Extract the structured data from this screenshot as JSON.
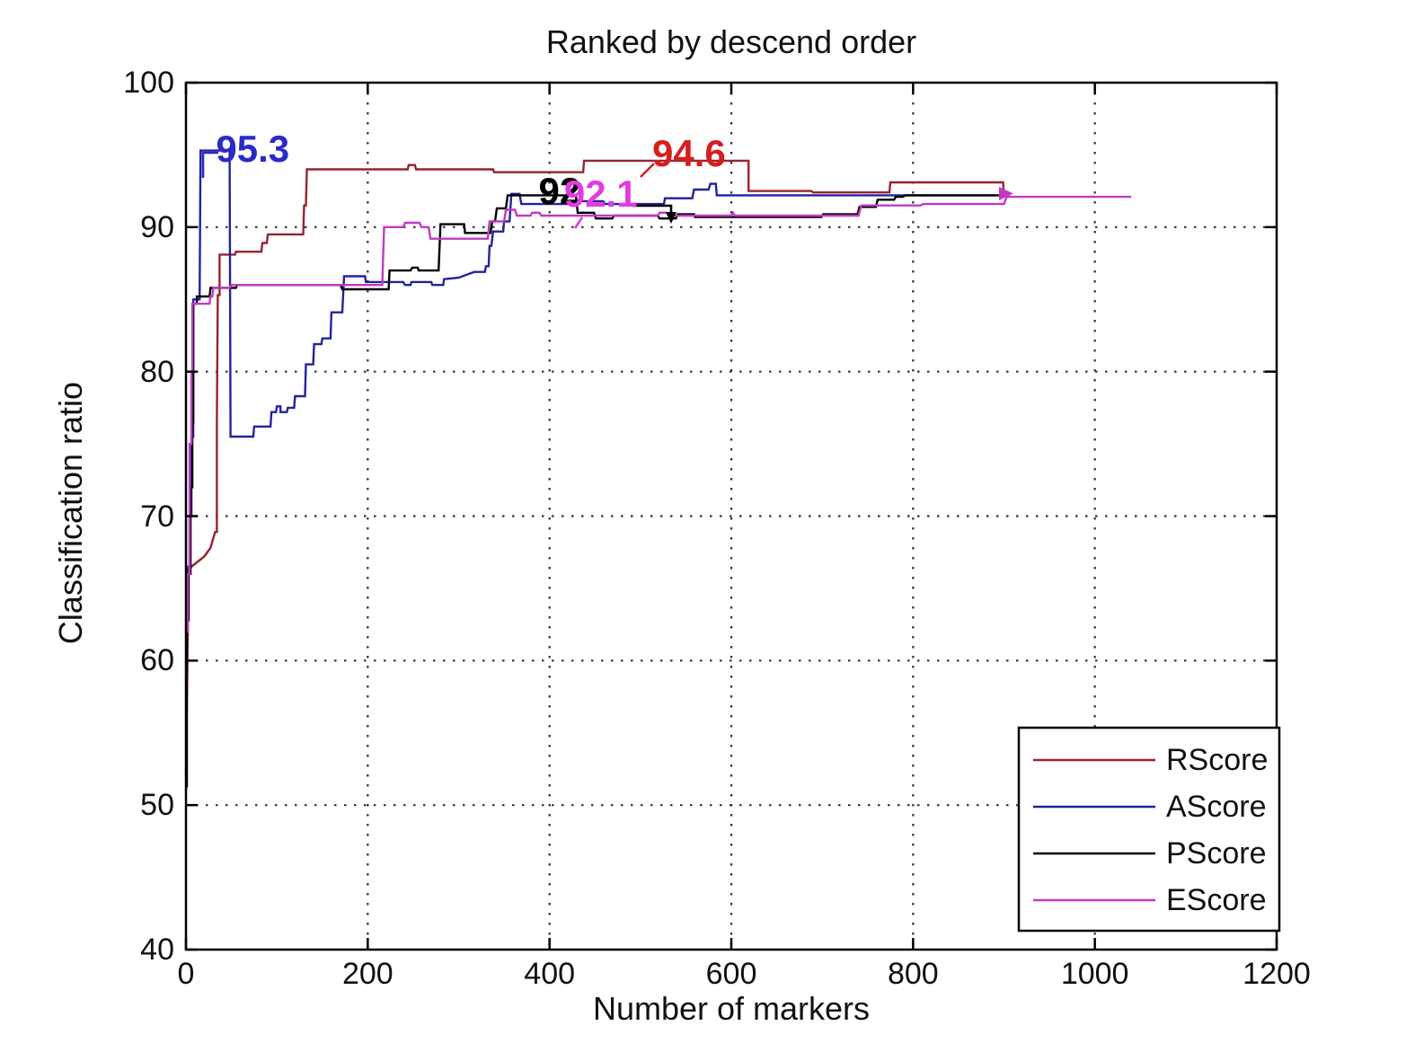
{
  "chart_data": {
    "type": "line",
    "title": "Ranked by descend order",
    "xlabel": "Number of markers",
    "ylabel": "Classification ratio",
    "xlim": [
      0,
      1200
    ],
    "ylim": [
      40,
      100
    ],
    "x_ticks": [
      0,
      200,
      400,
      600,
      800,
      1000,
      1200
    ],
    "y_ticks": [
      100,
      90,
      80,
      70,
      60,
      50,
      40
    ],
    "grid": "dotted",
    "grid_color": "#333333",
    "axis_color": "#000000",
    "legend_position": "lower right",
    "series": [
      {
        "name": "RScore",
        "color": "#96232f",
        "points": [
          [
            0,
            52
          ],
          [
            2,
            62
          ],
          [
            2,
            66.3
          ],
          [
            12,
            66.8
          ],
          [
            20,
            67.2
          ],
          [
            27,
            67.8
          ],
          [
            32,
            68.9
          ],
          [
            34,
            68.9
          ],
          [
            34,
            76.6
          ],
          [
            35,
            85.3
          ],
          [
            37,
            85.3
          ],
          [
            37,
            88.1
          ],
          [
            54,
            88.1
          ],
          [
            55,
            88.3
          ],
          [
            83,
            88.3
          ],
          [
            84,
            88.9
          ],
          [
            89,
            88.9
          ],
          [
            90,
            89.5
          ],
          [
            129,
            89.5
          ],
          [
            130,
            91.5
          ],
          [
            132,
            91.5
          ],
          [
            133,
            94.0
          ],
          [
            244,
            94.0
          ],
          [
            245,
            94.3
          ],
          [
            252,
            94.3
          ],
          [
            253,
            94.0
          ],
          [
            338,
            94.0
          ],
          [
            339,
            93.8
          ],
          [
            437,
            93.8
          ],
          [
            438,
            94.6
          ],
          [
            619,
            94.6
          ],
          [
            619,
            92.5
          ],
          [
            688,
            92.5
          ],
          [
            690,
            92.4
          ],
          [
            774,
            92.4
          ],
          [
            775,
            93.1
          ],
          [
            899,
            93.1
          ],
          [
            900,
            92.2
          ],
          [
            906,
            92.2
          ]
        ]
      },
      {
        "name": "AScore",
        "color": "#23239b",
        "points": [
          [
            1,
            62
          ],
          [
            2,
            62
          ],
          [
            2,
            66.5
          ],
          [
            4,
            66.5
          ],
          [
            4,
            70
          ],
          [
            6,
            70
          ],
          [
            6,
            75.5
          ],
          [
            8,
            75.5
          ],
          [
            8,
            85
          ],
          [
            15,
            85
          ],
          [
            16,
            95.3
          ],
          [
            48,
            95.3
          ],
          [
            49,
            75.5
          ],
          [
            74,
            75.5
          ],
          [
            75,
            76.2
          ],
          [
            93,
            76.2
          ],
          [
            94,
            77.2
          ],
          [
            99,
            77.2
          ],
          [
            100,
            77.6
          ],
          [
            104,
            77.6
          ],
          [
            104,
            77.2
          ],
          [
            111,
            77.2
          ],
          [
            112,
            77.5
          ],
          [
            119,
            77.5
          ],
          [
            120,
            78.3
          ],
          [
            131,
            78.3
          ],
          [
            132,
            80.5
          ],
          [
            140,
            80.5
          ],
          [
            141,
            81.9
          ],
          [
            149,
            81.9
          ],
          [
            150,
            82.3
          ],
          [
            159,
            82.3
          ],
          [
            160,
            84.1
          ],
          [
            172,
            84.1
          ],
          [
            174,
            86.6
          ],
          [
            197,
            86.6
          ],
          [
            198,
            86.2
          ],
          [
            239,
            86.2
          ],
          [
            241,
            86.0
          ],
          [
            247,
            86.0
          ],
          [
            248,
            86.2
          ],
          [
            270,
            86.2
          ],
          [
            271,
            86.0
          ],
          [
            283,
            86.0
          ],
          [
            284,
            86.4
          ],
          [
            300,
            86.5
          ],
          [
            317,
            86.9
          ],
          [
            329,
            86.9
          ],
          [
            330,
            87.3
          ],
          [
            333,
            87.3
          ],
          [
            334,
            88.7
          ],
          [
            336,
            88.7
          ],
          [
            338,
            89.7
          ],
          [
            349,
            89.7
          ],
          [
            350,
            90.4
          ],
          [
            356,
            90.4
          ],
          [
            358,
            92.3
          ],
          [
            367,
            92.3
          ],
          [
            369,
            91.6
          ],
          [
            429,
            91.6
          ],
          [
            431,
            91.8
          ],
          [
            459,
            91.8
          ],
          [
            461,
            91.6
          ],
          [
            526,
            91.6
          ],
          [
            527,
            92.0
          ],
          [
            557,
            92.0
          ],
          [
            559,
            92.6
          ],
          [
            575,
            92.6
          ],
          [
            577,
            93.0
          ],
          [
            583,
            93.0
          ],
          [
            584,
            92.2
          ],
          [
            890,
            92.2
          ]
        ]
      },
      {
        "name": "PScore",
        "color": "#000000",
        "points": [
          [
            0,
            51.3
          ],
          [
            1,
            51.3
          ],
          [
            1,
            62.8
          ],
          [
            3,
            62.8
          ],
          [
            3,
            66
          ],
          [
            5,
            66
          ],
          [
            5,
            72
          ],
          [
            7,
            72
          ],
          [
            7,
            76.5
          ],
          [
            8,
            76.5
          ],
          [
            8,
            84.7
          ],
          [
            12,
            84.7
          ],
          [
            12,
            85.2
          ],
          [
            26,
            85.2
          ],
          [
            27,
            85.8
          ],
          [
            55,
            85.8
          ],
          [
            56,
            86.0
          ],
          [
            170,
            86.0
          ],
          [
            172,
            85.7
          ],
          [
            223,
            85.7
          ],
          [
            224,
            87.0
          ],
          [
            247,
            87.0
          ],
          [
            249,
            87.2
          ],
          [
            255,
            87.2
          ],
          [
            256,
            87.0
          ],
          [
            278,
            87.0
          ],
          [
            280,
            90.2
          ],
          [
            306,
            90.2
          ],
          [
            307,
            89.6
          ],
          [
            335,
            89.6
          ],
          [
            337,
            90.4
          ],
          [
            340,
            90.4
          ],
          [
            342,
            91.3
          ],
          [
            352,
            91.3
          ],
          [
            354,
            92.2
          ],
          [
            429,
            92.2
          ],
          [
            431,
            91.0
          ],
          [
            449,
            91.0
          ],
          [
            451,
            90.6
          ],
          [
            469,
            90.6
          ],
          [
            471,
            90.8
          ],
          [
            519,
            90.8
          ],
          [
            521,
            90.6
          ],
          [
            539,
            90.6
          ],
          [
            541,
            90.9
          ],
          [
            559,
            90.9
          ],
          [
            560,
            90.7
          ],
          [
            699,
            90.7
          ],
          [
            701,
            90.9
          ],
          [
            739,
            90.9
          ],
          [
            741,
            91.4
          ],
          [
            759,
            91.4
          ],
          [
            761,
            91.9
          ],
          [
            779,
            91.9
          ],
          [
            781,
            92.1
          ],
          [
            789,
            92.1
          ],
          [
            791,
            92.2
          ],
          [
            900,
            92.2
          ]
        ]
      },
      {
        "name": "EScore",
        "color": "#c23ac2",
        "points": [
          [
            1,
            62
          ],
          [
            2,
            62
          ],
          [
            2,
            66
          ],
          [
            4,
            66
          ],
          [
            4,
            75
          ],
          [
            6,
            75
          ],
          [
            6,
            80
          ],
          [
            7,
            80
          ],
          [
            7,
            84.7
          ],
          [
            26,
            84.7
          ],
          [
            27,
            85.2
          ],
          [
            29,
            85.2
          ],
          [
            30,
            85.8
          ],
          [
            48,
            85.8
          ],
          [
            50,
            86.0
          ],
          [
            216,
            86.0
          ],
          [
            218,
            90.0
          ],
          [
            239,
            90.0
          ],
          [
            241,
            90.3
          ],
          [
            257,
            90.3
          ],
          [
            259,
            90.0
          ],
          [
            267,
            90.0
          ],
          [
            269,
            89.2
          ],
          [
            332,
            89.2
          ],
          [
            334,
            90.4
          ],
          [
            350,
            90.4
          ],
          [
            352,
            91.2
          ],
          [
            362,
            91.2
          ],
          [
            364,
            90.8
          ],
          [
            379,
            90.8
          ],
          [
            381,
            91.0
          ],
          [
            389,
            91.0
          ],
          [
            391,
            90.8
          ],
          [
            519,
            90.8
          ],
          [
            521,
            91.0
          ],
          [
            529,
            91.0
          ],
          [
            531,
            90.8
          ],
          [
            600,
            90.8
          ],
          [
            602,
            91.0
          ],
          [
            604,
            90.8
          ],
          [
            740,
            90.8
          ],
          [
            743,
            91.5
          ],
          [
            808,
            91.5
          ],
          [
            811,
            91.6
          ],
          [
            900,
            91.6
          ],
          [
            903,
            92.1
          ],
          [
            1040,
            92.1
          ]
        ]
      }
    ],
    "annotations": [
      {
        "text": "95.3",
        "color": "#2a2ac8",
        "x": 33,
        "y": 96.7
      },
      {
        "text": "94.6",
        "color": "#d71d1d",
        "x": 513,
        "y": 96.4
      },
      {
        "text": "92",
        "color": "#000000",
        "x": 388,
        "y": 93.8
      },
      {
        "text": "92.1",
        "color": "#e03ce0",
        "x": 416,
        "y": 93.6
      }
    ]
  }
}
